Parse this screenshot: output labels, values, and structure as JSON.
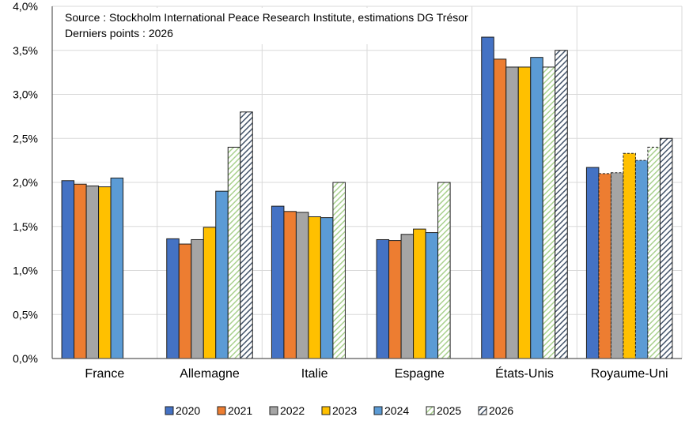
{
  "chart_data": {
    "type": "bar",
    "title": "",
    "annotation": [
      "Source : Stockholm International Peace Research Institute, estimations DG Trésor",
      "Derniers points : 2026"
    ],
    "xlabel": "",
    "ylabel": "",
    "ylim": [
      0,
      4
    ],
    "yticks": [
      "0,0%",
      "0,5%",
      "1,0%",
      "1,5%",
      "2,0%",
      "2,5%",
      "3,0%",
      "3,5%",
      "4,0%"
    ],
    "grid": true,
    "legend_position": "bottom",
    "categories": [
      "France",
      "Allemagne",
      "Italie",
      "Espagne",
      "États-Unis",
      "Royaume-Uni"
    ],
    "series": [
      {
        "name": "2020",
        "color": "#4472c4",
        "pattern": "solid",
        "values": [
          2.02,
          1.36,
          1.73,
          1.35,
          3.65,
          2.17
        ]
      },
      {
        "name": "2021",
        "color": "#ed7d31",
        "pattern": "solid",
        "values": [
          1.98,
          1.3,
          1.67,
          1.34,
          3.4,
          2.1
        ]
      },
      {
        "name": "2022",
        "color": "#a5a5a5",
        "pattern": "solid",
        "values": [
          1.96,
          1.35,
          1.66,
          1.41,
          3.31,
          2.11
        ]
      },
      {
        "name": "2023",
        "color": "#ffc000",
        "pattern": "solid",
        "values": [
          1.95,
          1.49,
          1.61,
          1.47,
          3.31,
          2.33
        ]
      },
      {
        "name": "2024",
        "color": "#5b9bd5",
        "pattern": "solid",
        "values": [
          2.05,
          1.9,
          1.6,
          1.43,
          3.42,
          2.25
        ]
      },
      {
        "name": "2025",
        "color": "#a9d18e",
        "pattern": "hatch-light",
        "values": [
          null,
          2.4,
          2.0,
          2.0,
          3.31,
          2.4
        ]
      },
      {
        "name": "2026",
        "color": "#44546a",
        "pattern": "hatch-dark",
        "values": [
          null,
          2.8,
          null,
          null,
          3.5,
          2.5
        ]
      }
    ]
  }
}
